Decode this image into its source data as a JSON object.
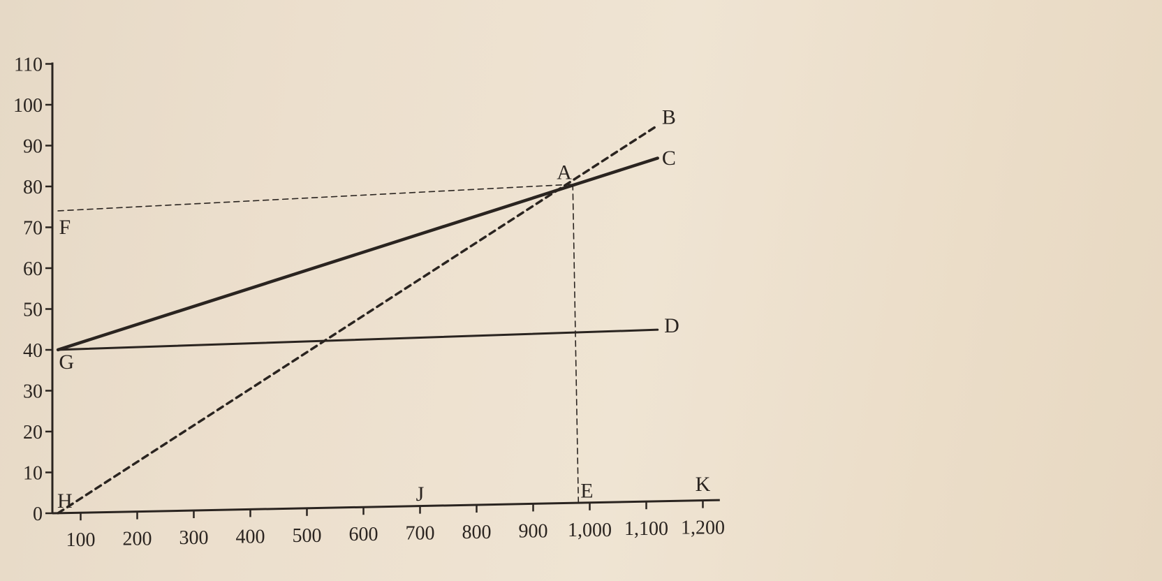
{
  "chart_data": {
    "type": "line",
    "title": "",
    "xlabel": "",
    "ylabel": "",
    "xlim": [
      50,
      1230
    ],
    "ylim": [
      0,
      110
    ],
    "x_ticks": [
      100,
      200,
      300,
      400,
      500,
      600,
      700,
      800,
      900,
      1000,
      1100,
      1200
    ],
    "x_tick_labels": [
      "100",
      "200",
      "300",
      "400",
      "500",
      "600",
      "700",
      "800",
      "900",
      "1,000",
      "1,100",
      "1,200"
    ],
    "y_ticks": [
      0,
      10,
      20,
      30,
      40,
      50,
      60,
      70,
      80,
      90,
      100,
      110
    ],
    "y_tick_labels": [
      "0",
      "10",
      "20",
      "30",
      "40",
      "50",
      "60",
      "70",
      "80",
      "90",
      "100",
      "110"
    ],
    "grid": false,
    "series": [
      {
        "x": [
          60,
          1120
        ],
        "y": [
          0,
          92
        ],
        "style": "dashed-bold"
      },
      {
        "x": [
          60,
          1120
        ],
        "y": [
          40,
          84
        ],
        "style": "solid-bold"
      },
      {
        "x": [
          60,
          1120
        ],
        "y": [
          40,
          42
        ],
        "style": "solid"
      }
    ],
    "guides": [
      {
        "x": [
          60,
          970
        ],
        "y": [
          74,
          78
        ],
        "style": "dashed-thin"
      },
      {
        "x": [
          970,
          980
        ],
        "y": [
          78,
          0
        ],
        "style": "dashed-thin"
      }
    ],
    "point_labels": [
      {
        "text": "A",
        "x": 955,
        "y": 81
      },
      {
        "text": "B",
        "x": 1140,
        "y": 94
      },
      {
        "text": "C",
        "x": 1140,
        "y": 84
      },
      {
        "text": "D",
        "x": 1145,
        "y": 43
      },
      {
        "text": "E",
        "x": 995,
        "y": 3
      },
      {
        "text": "F",
        "x": 72,
        "y": 70
      },
      {
        "text": "G",
        "x": 75,
        "y": 37
      },
      {
        "text": "H",
        "x": 72,
        "y": 3
      },
      {
        "text": "J",
        "x": 700,
        "y": 3
      },
      {
        "text": "K",
        "x": 1200,
        "y": 4
      }
    ]
  }
}
